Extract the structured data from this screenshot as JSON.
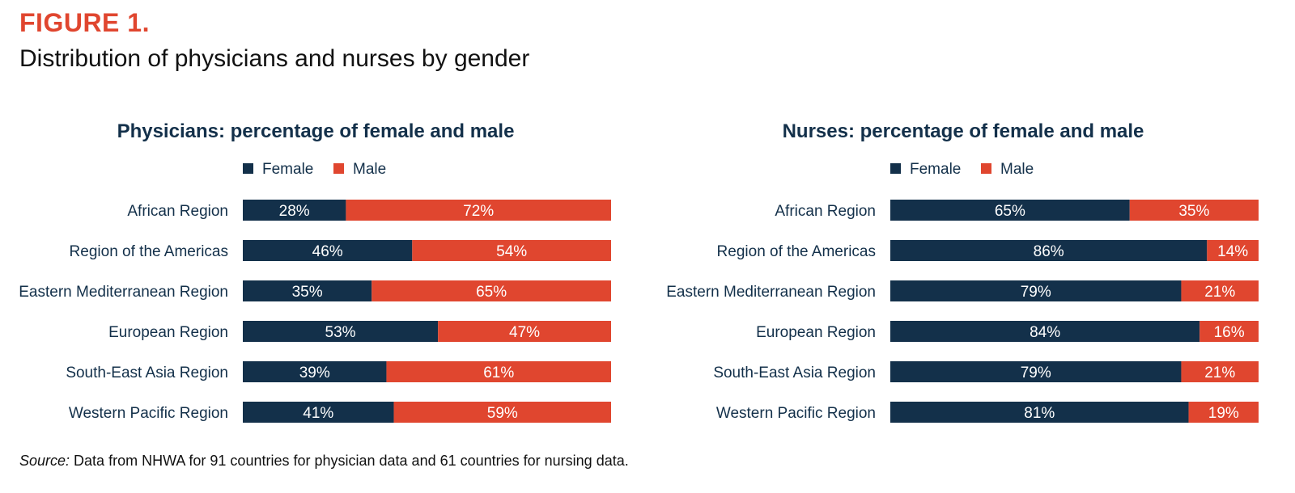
{
  "figure": {
    "label": "FIGURE 1.",
    "title": "Distribution of physicians and nurses by gender"
  },
  "colors": {
    "female": "#13304a",
    "male": "#e0462f",
    "accent": "#e0462f"
  },
  "chart_data": [
    {
      "type": "bar",
      "orientation": "horizontal",
      "stacked": true,
      "title": "Physicians: percentage of female and male",
      "legend": [
        "Female",
        "Male"
      ],
      "legend_placement": "top",
      "categories": [
        "African Region",
        "Region of the Americas",
        "Eastern Mediterranean Region",
        "European Region",
        "South-East Asia Region",
        "Western Pacific Region"
      ],
      "series": [
        {
          "name": "Female",
          "values": [
            28,
            46,
            35,
            53,
            39,
            41
          ],
          "labels": [
            "28%",
            "46%",
            "35%",
            "53%",
            "39%",
            "41%"
          ]
        },
        {
          "name": "Male",
          "values": [
            72,
            54,
            65,
            47,
            61,
            59
          ],
          "labels": [
            "72%",
            "54%",
            "65%",
            "47%",
            "61%",
            "59%"
          ]
        }
      ],
      "xlim": [
        0,
        100
      ],
      "grid": false
    },
    {
      "type": "bar",
      "orientation": "horizontal",
      "stacked": true,
      "title": "Nurses: percentage of female and male",
      "legend": [
        "Female",
        "Male"
      ],
      "legend_placement": "top",
      "categories": [
        "African Region",
        "Region of the Americas",
        "Eastern Mediterranean Region",
        "European Region",
        "South-East Asia Region",
        "Western Pacific Region"
      ],
      "series": [
        {
          "name": "Female",
          "values": [
            65,
            86,
            79,
            84,
            79,
            81
          ],
          "labels": [
            "65%",
            "86%",
            "79%",
            "84%",
            "79%",
            "81%"
          ]
        },
        {
          "name": "Male",
          "values": [
            35,
            14,
            21,
            16,
            21,
            19
          ],
          "labels": [
            "35%",
            "14%",
            "21%",
            "16%",
            "21%",
            "19%"
          ]
        }
      ],
      "xlim": [
        0,
        100
      ],
      "grid": false
    }
  ],
  "source": {
    "label": "Source:",
    "text": " Data from NHWA for 91 countries for physician data and 61 countries for nursing data."
  }
}
